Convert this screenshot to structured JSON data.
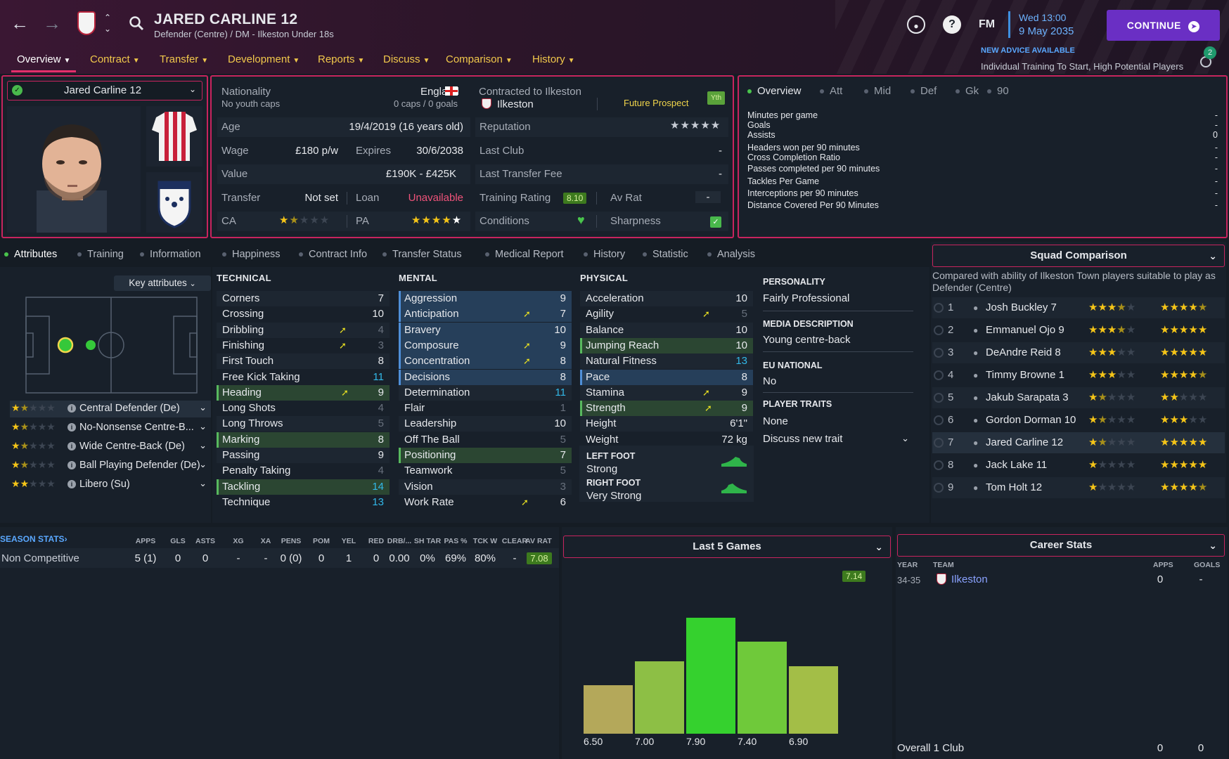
{
  "header": {
    "title": "JARED CARLINE 12",
    "subtitle": "Defender (Centre) / DM - Ilkeston Under 18s",
    "menu": [
      "Overview",
      "Contract",
      "Transfer",
      "Development",
      "Reports",
      "Discuss",
      "Comparison",
      "History"
    ],
    "date_line1": "Wed 13:00",
    "date_line2": "9 May 2035",
    "fm": "FM",
    "help": "?",
    "continue": "CONTINUE",
    "advice_title": "NEW ADVICE AVAILABLE",
    "advice_text": "Individual Training To Start, High Potential Players",
    "advice_count": "2"
  },
  "profile": {
    "name_select": "Jared Carline 12"
  },
  "info": {
    "nationality_label": "Nationality",
    "nationality_value": "England",
    "youth_caps": "No youth caps",
    "caps": "0 caps / 0 goals",
    "contract_label": "Contracted to Ilkeston",
    "club": "Ilkeston",
    "status": "Future Prospect",
    "yth": "Yth",
    "age_label": "Age",
    "age_value": "19/4/2019 (16 years old)",
    "reputation_label": "Reputation",
    "wage_label": "Wage",
    "wage_value": "£180 p/w",
    "expires_label": "Expires",
    "expires_value": "30/6/2038",
    "lastclub_label": "Last Club",
    "lastclub_value": "-",
    "value_label": "Value",
    "value_value": "£190K - £425K",
    "lastfee_label": "Last Transfer Fee",
    "lastfee_value": "-",
    "transfer_label": "Transfer",
    "transfer_value": "Not set",
    "loan_label": "Loan",
    "loan_value": "Unavailable",
    "training_label": "Training Rating",
    "training_value": "8.10",
    "avrat_label": "Av Rat",
    "avrat_value": "-",
    "ca_label": "CA",
    "pa_label": "PA",
    "conditions_label": "Conditions",
    "sharpness_label": "Sharpness"
  },
  "stats_panel": {
    "tabs": [
      "Overview",
      "Att",
      "Mid",
      "Def",
      "Gk",
      "90"
    ],
    "rows": [
      {
        "label": "Minutes per game",
        "value": "-"
      },
      {
        "label": "Goals",
        "value": "-"
      },
      {
        "label": "Assists",
        "value": "0"
      },
      {
        "label": "Headers won per 90 minutes",
        "value": "-"
      },
      {
        "label": "Cross Completion Ratio",
        "value": "-"
      },
      {
        "label": "Passes completed per 90 minutes",
        "value": "-"
      },
      {
        "label": "Tackles Per Game",
        "value": "-"
      },
      {
        "label": "Interceptions per 90 minutes",
        "value": "-"
      },
      {
        "label": "Distance Covered Per 90 Minutes",
        "value": "-"
      }
    ]
  },
  "subtabs": [
    "Attributes",
    "Training",
    "Information",
    "Happiness",
    "Contract Info",
    "Transfer Status",
    "Medical Report",
    "History",
    "Statistic",
    "Analysis"
  ],
  "key_attributes": "Key attributes",
  "roles": [
    {
      "name": "Central Defender (De)",
      "stars": 1.5
    },
    {
      "name": "No-Nonsense Centre-B...",
      "stars": 1.5
    },
    {
      "name": "Wide Centre-Back (De)",
      "stars": 1.5
    },
    {
      "name": "Ball Playing Defender (De)",
      "stars": 1.5
    },
    {
      "name": "Libero (Su)",
      "stars": 2
    }
  ],
  "technical": {
    "title": "TECHNICAL",
    "rows": [
      {
        "name": "Corners",
        "value": "7"
      },
      {
        "name": "Crossing",
        "value": "10"
      },
      {
        "name": "Dribbling",
        "value": "4"
      },
      {
        "name": "Finishing",
        "value": "3"
      },
      {
        "name": "First Touch",
        "value": "8"
      },
      {
        "name": "Free Kick Taking",
        "value": "11"
      },
      {
        "name": "Heading",
        "value": "9"
      },
      {
        "name": "Long Shots",
        "value": "4"
      },
      {
        "name": "Long Throws",
        "value": "5"
      },
      {
        "name": "Marking",
        "value": "8"
      },
      {
        "name": "Passing",
        "value": "9"
      },
      {
        "name": "Penalty Taking",
        "value": "4"
      },
      {
        "name": "Tackling",
        "value": "14"
      },
      {
        "name": "Technique",
        "value": "13"
      }
    ]
  },
  "mental": {
    "title": "MENTAL",
    "rows": [
      {
        "name": "Aggression",
        "value": "9"
      },
      {
        "name": "Anticipation",
        "value": "7"
      },
      {
        "name": "Bravery",
        "value": "10"
      },
      {
        "name": "Composure",
        "value": "9"
      },
      {
        "name": "Concentration",
        "value": "8"
      },
      {
        "name": "Decisions",
        "value": "8"
      },
      {
        "name": "Determination",
        "value": "11"
      },
      {
        "name": "Flair",
        "value": "1"
      },
      {
        "name": "Leadership",
        "value": "10"
      },
      {
        "name": "Off The Ball",
        "value": "5"
      },
      {
        "name": "Positioning",
        "value": "7"
      },
      {
        "name": "Teamwork",
        "value": "5"
      },
      {
        "name": "Vision",
        "value": "3"
      },
      {
        "name": "Work Rate",
        "value": "6"
      }
    ]
  },
  "physical": {
    "title": "PHYSICAL",
    "rows": [
      {
        "name": "Acceleration",
        "value": "10"
      },
      {
        "name": "Agility",
        "value": "5"
      },
      {
        "name": "Balance",
        "value": "10"
      },
      {
        "name": "Jumping Reach",
        "value": "10"
      },
      {
        "name": "Natural Fitness",
        "value": "13"
      },
      {
        "name": "Pace",
        "value": "8"
      },
      {
        "name": "Stamina",
        "value": "9"
      },
      {
        "name": "Strength",
        "value": "9"
      },
      {
        "name": "Height",
        "value": "6'1\""
      },
      {
        "name": "Weight",
        "value": "72 kg"
      }
    ],
    "left_foot_label": "LEFT FOOT",
    "left_foot_value": "Strong",
    "right_foot_label": "RIGHT FOOT",
    "right_foot_value": "Very Strong"
  },
  "personality": {
    "personality_label": "PERSONALITY",
    "personality_value": "Fairly Professional",
    "media_label": "MEDIA DESCRIPTION",
    "media_value": "Young centre-back",
    "eu_label": "EU NATIONAL",
    "eu_value": "No",
    "traits_label": "PLAYER TRAITS",
    "traits_value": "None",
    "discuss_trait": "Discuss new trait"
  },
  "squad": {
    "title": "Squad Comparison",
    "desc": "Compared with ability of Ilkeston Town players suitable to play as Defender (Centre)",
    "rows": [
      {
        "rank": "1",
        "name": "Josh Buckley 7",
        "ca": 3.5,
        "pa": 4.5
      },
      {
        "rank": "2",
        "name": "Emmanuel Ojo 9",
        "ca": 3.5,
        "pa": 5
      },
      {
        "rank": "3",
        "name": "DeAndre Reid 8",
        "ca": 3,
        "pa": 5
      },
      {
        "rank": "4",
        "name": "Timmy Browne 1",
        "ca": 3,
        "pa": 4.5
      },
      {
        "rank": "5",
        "name": "Jakub Sarapata 3",
        "ca": 1.5,
        "pa": 2
      },
      {
        "rank": "6",
        "name": "Gordon Dorman 10",
        "ca": 1.5,
        "pa": 3
      },
      {
        "rank": "7",
        "name": "Jared Carline 12",
        "ca": 1.5,
        "pa": 5
      },
      {
        "rank": "8",
        "name": "Jack Lake 11",
        "ca": 1,
        "pa": 5
      },
      {
        "rank": "9",
        "name": "Tom Holt 12",
        "ca": 1,
        "pa": 4.5
      }
    ]
  },
  "season": {
    "title": "SEASON STATS",
    "headers": [
      "APPS",
      "GLS",
      "ASTS",
      "XG",
      "XA",
      "PENS",
      "POM",
      "YEL",
      "RED",
      "DRB/...",
      "SH TAR",
      "PAS %",
      "TCK W",
      "CLEAR",
      "AV RAT"
    ],
    "row_label": "Non Competitive",
    "values": [
      "5 (1)",
      "0",
      "0",
      "-",
      "-",
      "0 (0)",
      "0",
      "1",
      "0",
      "0.00",
      "0%",
      "69%",
      "80%",
      "-",
      "7.08"
    ]
  },
  "last5": {
    "title": "Last 5 Games",
    "average": "7.14",
    "colors": [
      "#b4a85a",
      "#8dbf45",
      "#35d12e",
      "#6fc93a",
      "#a3be47"
    ]
  },
  "chart_data": {
    "type": "bar",
    "categories": [
      "6.50",
      "7.00",
      "7.90",
      "7.40",
      "6.90"
    ],
    "values": [
      6.5,
      7.0,
      7.9,
      7.4,
      6.9
    ],
    "title": "Last 5 Games",
    "ylim": [
      5.5,
      8.2
    ]
  },
  "career": {
    "title": "Career Stats",
    "headers": [
      "YEAR",
      "TEAM",
      "APPS",
      "GOALS"
    ],
    "rows": [
      {
        "year": "34-35",
        "team": "Ilkeston",
        "apps": "0",
        "goals": "-"
      }
    ],
    "total_label": "Overall 1 Club",
    "total_apps": "0",
    "total_goals": "0"
  }
}
